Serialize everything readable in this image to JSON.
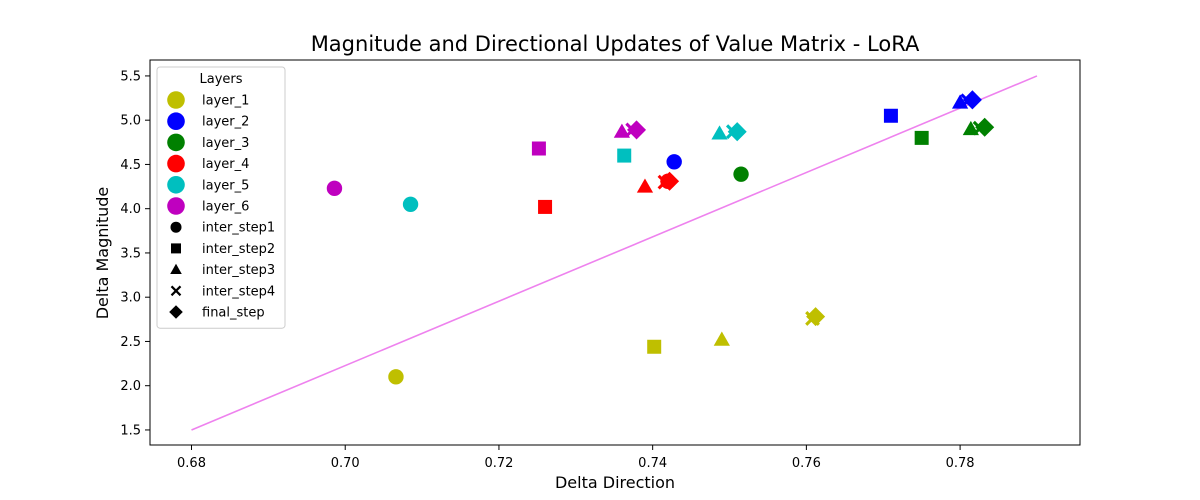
{
  "chart_data": {
    "type": "scatter",
    "title": "Magnitude and Directional Updates of Value Matrix - LoRA",
    "xlabel": "Delta Direction",
    "ylabel": "Delta Magnitude",
    "xlim": [
      0.6746,
      0.7956
    ],
    "ylim": [
      1.33,
      5.68
    ],
    "xticks": [
      "0.68",
      "0.70",
      "0.72",
      "0.74",
      "0.76",
      "0.78"
    ],
    "yticks": [
      "1.5",
      "2.0",
      "2.5",
      "3.0",
      "3.5",
      "4.0",
      "4.5",
      "5.0",
      "5.5"
    ],
    "grid": false,
    "legend": {
      "title": "Layers",
      "placement": "top-left",
      "layers": [
        {
          "name": "layer_1",
          "color": "#bfbf00"
        },
        {
          "name": "layer_2",
          "color": "#0000ff"
        },
        {
          "name": "layer_3",
          "color": "#008000"
        },
        {
          "name": "layer_4",
          "color": "#ff0000"
        },
        {
          "name": "layer_5",
          "color": "#00bfbf"
        },
        {
          "name": "layer_6",
          "color": "#bf00bf"
        }
      ],
      "steps": [
        {
          "name": "inter_step1",
          "marker": "circle"
        },
        {
          "name": "inter_step2",
          "marker": "square"
        },
        {
          "name": "inter_step3",
          "marker": "triangle"
        },
        {
          "name": "inter_step4",
          "marker": "x"
        },
        {
          "name": "final_step",
          "marker": "diamond"
        }
      ]
    },
    "series": [
      {
        "layer": "layer_1",
        "color": "#bfbf00",
        "points": [
          {
            "step": "inter_step1",
            "x": 0.7066,
            "y": 2.1
          },
          {
            "step": "inter_step2",
            "x": 0.7402,
            "y": 2.44
          },
          {
            "step": "inter_step3",
            "x": 0.749,
            "y": 2.52
          },
          {
            "step": "inter_step4",
            "x": 0.7608,
            "y": 2.76
          },
          {
            "step": "final_step",
            "x": 0.7612,
            "y": 2.78
          }
        ]
      },
      {
        "layer": "layer_2",
        "color": "#0000ff",
        "points": [
          {
            "step": "inter_step1",
            "x": 0.7428,
            "y": 4.53
          },
          {
            "step": "inter_step2",
            "x": 0.771,
            "y": 5.05
          },
          {
            "step": "inter_step3",
            "x": 0.78,
            "y": 5.2
          },
          {
            "step": "inter_step4",
            "x": 0.781,
            "y": 5.22
          },
          {
            "step": "final_step",
            "x": 0.7816,
            "y": 5.23
          }
        ]
      },
      {
        "layer": "layer_3",
        "color": "#008000",
        "points": [
          {
            "step": "inter_step1",
            "x": 0.7515,
            "y": 4.39
          },
          {
            "step": "inter_step2",
            "x": 0.775,
            "y": 4.8
          },
          {
            "step": "inter_step3",
            "x": 0.7814,
            "y": 4.9
          },
          {
            "step": "inter_step4",
            "x": 0.7826,
            "y": 4.91
          },
          {
            "step": "final_step",
            "x": 0.7832,
            "y": 4.92
          }
        ]
      },
      {
        "layer": "layer_4",
        "color": "#ff0000",
        "points": [
          {
            "step": "inter_step1",
            "x": 0.742,
            "y": 4.31
          },
          {
            "step": "inter_step2",
            "x": 0.726,
            "y": 4.02
          },
          {
            "step": "inter_step3",
            "x": 0.739,
            "y": 4.25
          },
          {
            "step": "inter_step4",
            "x": 0.7416,
            "y": 4.3
          },
          {
            "step": "final_step",
            "x": 0.7422,
            "y": 4.31
          }
        ]
      },
      {
        "layer": "layer_5",
        "color": "#00bfbf",
        "points": [
          {
            "step": "inter_step1",
            "x": 0.7085,
            "y": 4.05
          },
          {
            "step": "inter_step2",
            "x": 0.7363,
            "y": 4.6
          },
          {
            "step": "inter_step3",
            "x": 0.7487,
            "y": 4.85
          },
          {
            "step": "inter_step4",
            "x": 0.7505,
            "y": 4.87
          },
          {
            "step": "final_step",
            "x": 0.751,
            "y": 4.87
          }
        ]
      },
      {
        "layer": "layer_6",
        "color": "#bf00bf",
        "points": [
          {
            "step": "inter_step1",
            "x": 0.6986,
            "y": 4.23
          },
          {
            "step": "inter_step2",
            "x": 0.7252,
            "y": 4.68
          },
          {
            "step": "inter_step3",
            "x": 0.736,
            "y": 4.87
          },
          {
            "step": "inter_step4",
            "x": 0.7374,
            "y": 4.89
          },
          {
            "step": "final_step",
            "x": 0.7379,
            "y": 4.89
          }
        ]
      }
    ],
    "reference_line": {
      "color": "#ee82ee",
      "points": [
        {
          "x": 0.68,
          "y": 1.5
        },
        {
          "x": 0.79,
          "y": 5.5
        }
      ]
    }
  }
}
